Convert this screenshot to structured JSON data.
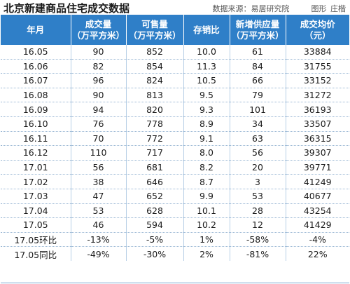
{
  "header": {
    "title": "北京新建商品住宅成交数据",
    "source": "数据来源：易居研究院",
    "graphic_label": "图形",
    "author": "庄楷"
  },
  "table": {
    "columns": [
      {
        "line1": "年月",
        "line2": ""
      },
      {
        "line1": "成交量",
        "line2": "（万平方米）"
      },
      {
        "line1": "可售量",
        "line2": "（万平方米）"
      },
      {
        "line1": "存销比",
        "line2": ""
      },
      {
        "line1": "新增供应量",
        "line2": "（万平方米）"
      },
      {
        "line1": "成交均价",
        "line2": "（元）"
      }
    ],
    "rows": [
      [
        "16.05",
        "90",
        "852",
        "10.0",
        "61",
        "33884"
      ],
      [
        "16.06",
        "82",
        "854",
        "11.3",
        "84",
        "31755"
      ],
      [
        "16.07",
        "96",
        "824",
        "10.5",
        "66",
        "33152"
      ],
      [
        "16.08",
        "90",
        "813",
        "9.5",
        "79",
        "31272"
      ],
      [
        "16.09",
        "94",
        "820",
        "9.3",
        "101",
        "36193"
      ],
      [
        "16.10",
        "76",
        "778",
        "8.9",
        "34",
        "33507"
      ],
      [
        "16.11",
        "70",
        "772",
        "9.1",
        "63",
        "36315"
      ],
      [
        "16.12",
        "110",
        "717",
        "8.0",
        "56",
        "39307"
      ],
      [
        "17.01",
        "56",
        "681",
        "8.2",
        "20",
        "39771"
      ],
      [
        "17.02",
        "38",
        "646",
        "8.7",
        "3",
        "41249"
      ],
      [
        "17.03",
        "47",
        "652",
        "9.9",
        "53",
        "40677"
      ],
      [
        "17.04",
        "53",
        "628",
        "10.1",
        "28",
        "43254"
      ],
      [
        "17.05",
        "46",
        "594",
        "10.2",
        "12",
        "41429"
      ],
      [
        "17.05环比",
        "-13%",
        "-5%",
        "1%",
        "-58%",
        "-4%"
      ],
      [
        "17.05同比",
        "-49%",
        "-30%",
        "2%",
        "-81%",
        "22%"
      ]
    ]
  },
  "colors": {
    "header_bg": "#2f7fc8",
    "header_text": "#ffffff",
    "cell_text": "#1a1a1a"
  }
}
